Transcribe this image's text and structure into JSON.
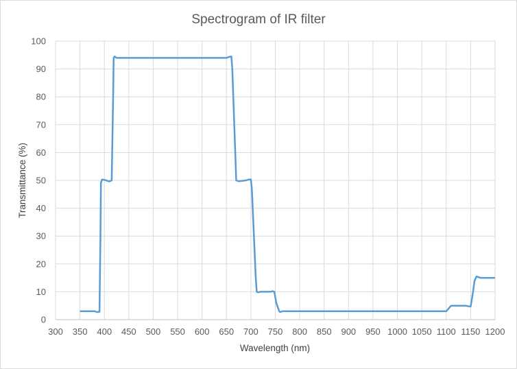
{
  "chart_data": {
    "type": "line",
    "title": "Spectrogram of IR filter",
    "xlabel": "Wavelength (nm)",
    "ylabel": "Transmittance (%)",
    "xlim": [
      300,
      1200
    ],
    "ylim": [
      0,
      100
    ],
    "xticks": [
      300,
      350,
      400,
      450,
      500,
      550,
      600,
      650,
      700,
      750,
      800,
      850,
      900,
      950,
      1000,
      1050,
      1100,
      1150,
      1200
    ],
    "yticks": [
      0,
      10,
      20,
      30,
      40,
      50,
      60,
      70,
      80,
      90,
      100
    ],
    "grid": true,
    "legend": "none",
    "line_color": "#5b9bd5",
    "series": [
      {
        "name": "Transmittance",
        "points": [
          [
            350,
            3
          ],
          [
            380,
            3
          ],
          [
            385,
            2.7
          ],
          [
            390,
            2.8
          ],
          [
            392,
            30
          ],
          [
            393,
            49
          ],
          [
            395,
            50.3
          ],
          [
            400,
            50.2
          ],
          [
            410,
            49.6
          ],
          [
            415,
            50
          ],
          [
            418,
            80
          ],
          [
            419,
            94
          ],
          [
            421,
            94.5
          ],
          [
            425,
            94
          ],
          [
            650,
            94
          ],
          [
            655,
            94.3
          ],
          [
            660,
            94.5
          ],
          [
            662,
            90
          ],
          [
            668,
            60
          ],
          [
            670,
            50
          ],
          [
            675,
            49.7
          ],
          [
            690,
            50
          ],
          [
            695,
            50.3
          ],
          [
            700,
            50.3
          ],
          [
            702,
            47
          ],
          [
            710,
            15
          ],
          [
            712,
            10
          ],
          [
            715,
            9.8
          ],
          [
            720,
            10
          ],
          [
            740,
            10
          ],
          [
            745,
            10.2
          ],
          [
            748,
            10
          ],
          [
            752,
            6
          ],
          [
            758,
            3
          ],
          [
            760,
            2.7
          ],
          [
            765,
            3
          ],
          [
            800,
            3
          ],
          [
            1090,
            3
          ],
          [
            1100,
            3
          ],
          [
            1105,
            4
          ],
          [
            1110,
            5
          ],
          [
            1120,
            5
          ],
          [
            1140,
            5
          ],
          [
            1145,
            4.8
          ],
          [
            1150,
            4.7
          ],
          [
            1155,
            10
          ],
          [
            1158,
            14
          ],
          [
            1162,
            15.5
          ],
          [
            1170,
            15
          ],
          [
            1200,
            15
          ]
        ]
      }
    ]
  }
}
